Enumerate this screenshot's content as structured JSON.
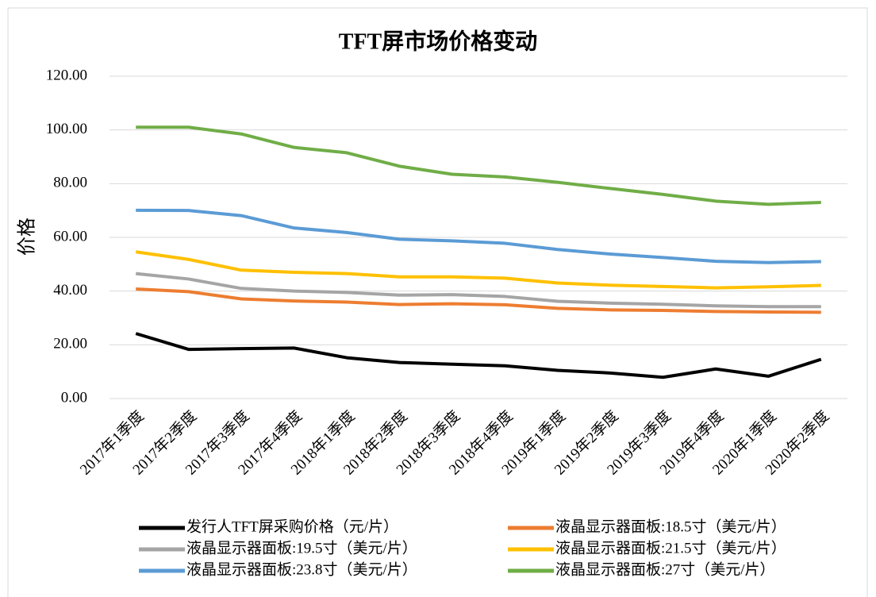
{
  "chart_data": {
    "type": "line",
    "title": "TFT屏市场价格变动",
    "y_label": "价格",
    "categories": [
      "2017年1季度",
      "2017年2季度",
      "2017年3季度",
      "2017年4季度",
      "2018年1季度",
      "2018年2季度",
      "2018年3季度",
      "2018年4季度",
      "2019年1季度",
      "2019年2季度",
      "2019年3季度",
      "2019年4季度",
      "2020年1季度",
      "2020年2季度"
    ],
    "series": [
      {
        "name": "发行人TFT屏采购价格（元/片）",
        "color": "#000000",
        "values": [
          24.2,
          18.3,
          18.6,
          18.8,
          15.2,
          13.4,
          12.8,
          12.2,
          10.5,
          9.5,
          7.9,
          11.0,
          8.3,
          14.6
        ]
      },
      {
        "name": "液晶显示器面板:18.5寸（美元/片）",
        "color": "#ed7d31",
        "values": [
          40.8,
          39.8,
          37.1,
          36.3,
          35.9,
          35.0,
          35.3,
          34.9,
          33.6,
          33.0,
          32.8,
          32.4,
          32.2,
          32.1
        ]
      },
      {
        "name": "液晶显示器面板:19.5寸（美元/片）",
        "color": "#a5a5a5",
        "values": [
          46.5,
          44.5,
          41.0,
          40.0,
          39.5,
          38.5,
          38.7,
          38.0,
          36.2,
          35.5,
          35.1,
          34.5,
          34.2,
          34.2
        ]
      },
      {
        "name": "液晶显示器面板:21.5寸（美元/片）",
        "color": "#ffc000",
        "values": [
          54.6,
          51.8,
          47.8,
          47.0,
          46.5,
          45.3,
          45.3,
          44.8,
          43.0,
          42.2,
          41.7,
          41.2,
          41.6,
          42.1
        ]
      },
      {
        "name": "液晶显示器面板:23.8寸（美元/片）",
        "color": "#5b9bd5",
        "values": [
          70.1,
          70.0,
          68.1,
          63.5,
          61.8,
          59.3,
          58.7,
          57.8,
          55.5,
          53.8,
          52.5,
          51.1,
          50.6,
          51.0
        ]
      },
      {
        "name": "液晶显示器面板:27寸（美元/片）",
        "color": "#70ad47",
        "values": [
          101.0,
          101.0,
          98.5,
          93.5,
          91.5,
          86.5,
          83.5,
          82.5,
          80.5,
          78.2,
          76.0,
          73.5,
          72.3,
          73.0
        ]
      }
    ],
    "ylim": [
      0,
      120
    ],
    "yticks": [
      {
        "value": 0,
        "label": "0.00"
      },
      {
        "value": 20,
        "label": "20.00"
      },
      {
        "value": 40,
        "label": "40.00"
      },
      {
        "value": 60,
        "label": "60.00"
      },
      {
        "value": 80,
        "label": "80.00"
      },
      {
        "value": 100,
        "label": "100.00"
      },
      {
        "value": 120,
        "label": "120.00"
      }
    ],
    "grid": true,
    "legend": "bottom"
  }
}
